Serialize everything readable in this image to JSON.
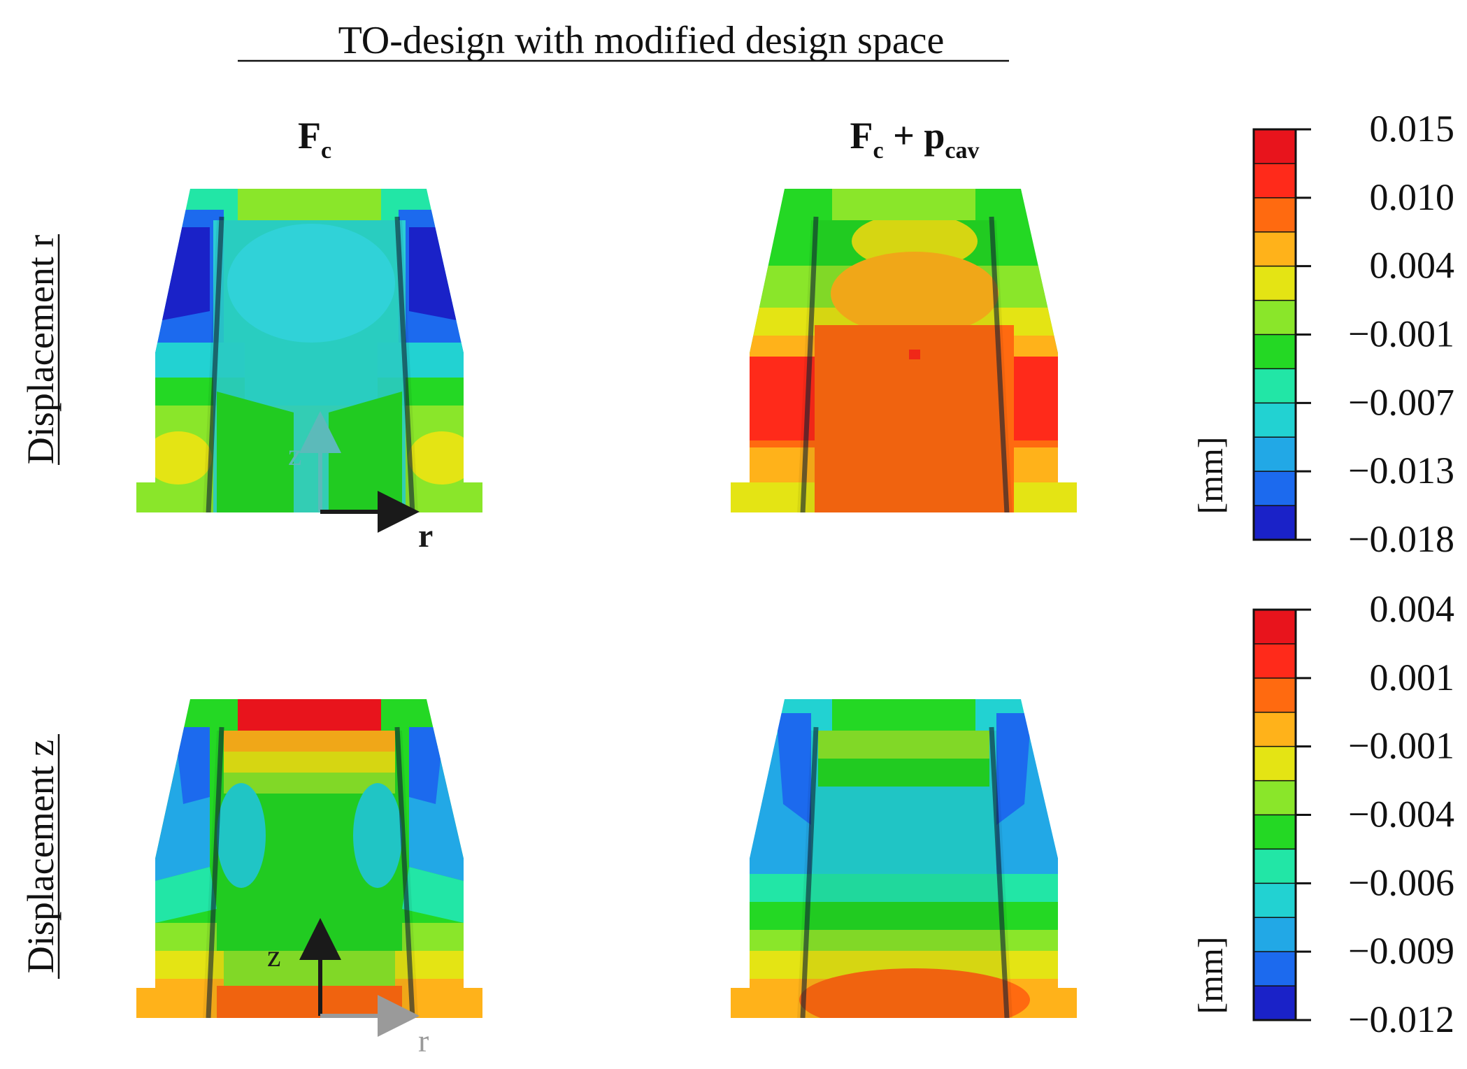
{
  "title": "TO-design with modified design space",
  "columns": {
    "left": {
      "main": "F",
      "sub": "c"
    },
    "right": {
      "main": "F",
      "sub": "c",
      "plus": " + p",
      "sub2": "cav"
    }
  },
  "rows": [
    {
      "label": "Displacement r"
    },
    {
      "label": "Displacement z"
    }
  ],
  "axes": {
    "top": {
      "z": "z",
      "r": "r"
    },
    "bottom": {
      "z": "z",
      "r": "r"
    }
  },
  "colorbars": [
    {
      "unit": "[mm]",
      "ticks": [
        "0.015",
        "0.010",
        "0.004",
        "−0.001",
        "−0.007",
        "−0.013",
        "−0.018"
      ]
    },
    {
      "unit": "[mm]",
      "ticks": [
        "0.004",
        "0.001",
        "−0.001",
        "−0.004",
        "−0.006",
        "−0.009",
        "−0.012"
      ]
    }
  ],
  "palette": [
    "#e8141c",
    "#ff2a1a",
    "#ff6a10",
    "#ffb21a",
    "#e4e414",
    "#8ae62a",
    "#24d824",
    "#22e6a6",
    "#22d2d2",
    "#22a8e6",
    "#1c6aee",
    "#1a22c8"
  ]
}
